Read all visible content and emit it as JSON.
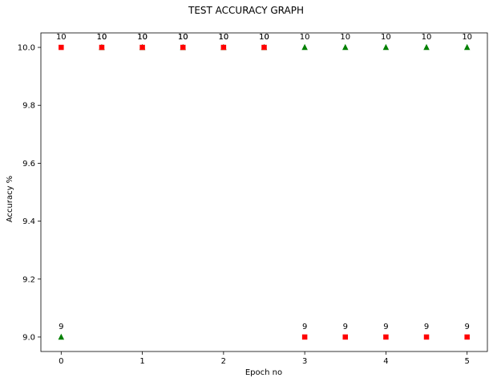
{
  "chart_data": {
    "type": "scatter",
    "title": "TEST ACCURACY GRAPH",
    "xlabel": "Epoch no",
    "ylabel": "Accuracy %",
    "xlim": [
      -0.25,
      5.25
    ],
    "ylim": [
      8.95,
      10.05
    ],
    "xticks": [
      0,
      1,
      2,
      3,
      4,
      5
    ],
    "yticks": [
      9.0,
      9.2,
      9.4,
      9.6,
      9.8,
      10.0
    ],
    "x": [
      0,
      0.5,
      1,
      1.5,
      2,
      2.5,
      3,
      3.5,
      4,
      4.5,
      5
    ],
    "grid": false,
    "series": [
      {
        "marker": "triangle",
        "color": "#008000",
        "values": [
          9,
          10,
          10,
          10,
          10,
          10,
          10,
          10,
          10,
          10,
          10
        ]
      },
      {
        "marker": "square",
        "color": "#ff0000",
        "values": [
          10,
          10,
          10,
          10,
          10,
          10,
          9,
          9,
          9,
          9,
          9
        ]
      }
    ]
  }
}
